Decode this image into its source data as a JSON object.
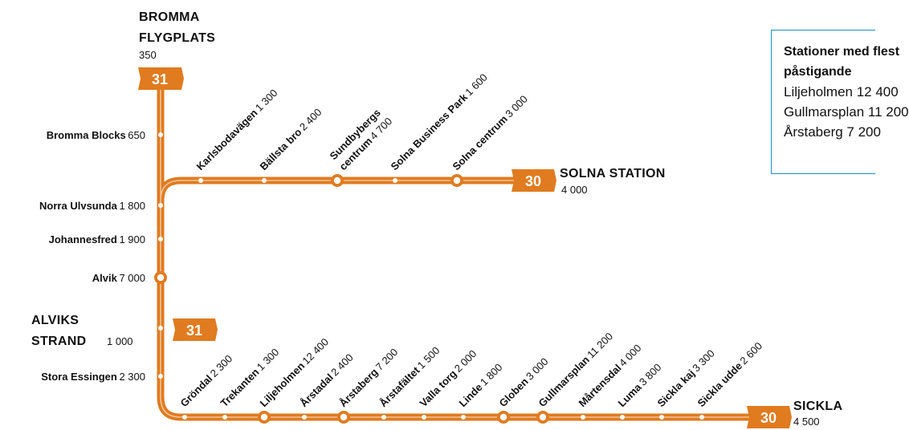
{
  "colors": {
    "line": "#e07b1f",
    "box_border": "#1f8fc9"
  },
  "termini": {
    "bromma": {
      "name_line1": "BROMMA",
      "name_line2": "FLYGPLATS",
      "pax": "350",
      "line": "31"
    },
    "solna": {
      "name": "SOLNA STATION",
      "pax": "4 000",
      "line": "30"
    },
    "alviks_strand": {
      "name_line1": "ALVIKS",
      "name_line2": "STRAND",
      "pax": "1 000",
      "line": "31"
    },
    "sickla": {
      "name": "SICKLA",
      "pax": "4 500",
      "line": "30"
    }
  },
  "vertical_stations": [
    {
      "name": "Bromma Blocks",
      "pax": "650"
    },
    {
      "name": "Norra Ulvsunda",
      "pax": "1 800"
    },
    {
      "name": "Johannesfred",
      "pax": "1 900"
    },
    {
      "name": "Alvik",
      "pax": "7 000"
    },
    {
      "name": "Stora Essingen",
      "pax": "2 300"
    }
  ],
  "top_branch_stations": [
    {
      "name": "Karlsbodavägen",
      "pax": "1 300"
    },
    {
      "name": "Bällsta bro",
      "pax": "2 400"
    },
    {
      "name": "Sundbybergs",
      "name2": "centrum",
      "pax": "4 700"
    },
    {
      "name": "Solna Business Park",
      "pax": "1 600"
    },
    {
      "name": "Solna centrum",
      "pax": "3 000"
    }
  ],
  "bottom_branch_stations": [
    {
      "name": "Gröndal",
      "pax": "2 300"
    },
    {
      "name": "Trekanten",
      "pax": "1 300"
    },
    {
      "name": "Liljeholmen",
      "pax": "12 400"
    },
    {
      "name": "Årstadal",
      "pax": "2 400"
    },
    {
      "name": "Årstaberg",
      "pax": "7 200"
    },
    {
      "name": "Årstafältet",
      "pax": "1 500"
    },
    {
      "name": "Valla torg",
      "pax": "2 000"
    },
    {
      "name": "Linde",
      "pax": "1 800"
    },
    {
      "name": "Globen",
      "pax": "3 000"
    },
    {
      "name": "Gullmarsplan",
      "pax": "11 200"
    },
    {
      "name": "Mårtensdal",
      "pax": "4 000"
    },
    {
      "name": "Luma",
      "pax": "3 800"
    },
    {
      "name": "Sickla kaj",
      "pax": "3 300"
    },
    {
      "name": "Sickla udde",
      "pax": "2 600"
    }
  ],
  "infobox": {
    "title_line1": "Stationer med flest",
    "title_line2": "påstigande",
    "rows": [
      "Liljeholmen 12 400",
      "Gullmarsplan 11 200",
      "Årstaberg 7 200"
    ]
  }
}
